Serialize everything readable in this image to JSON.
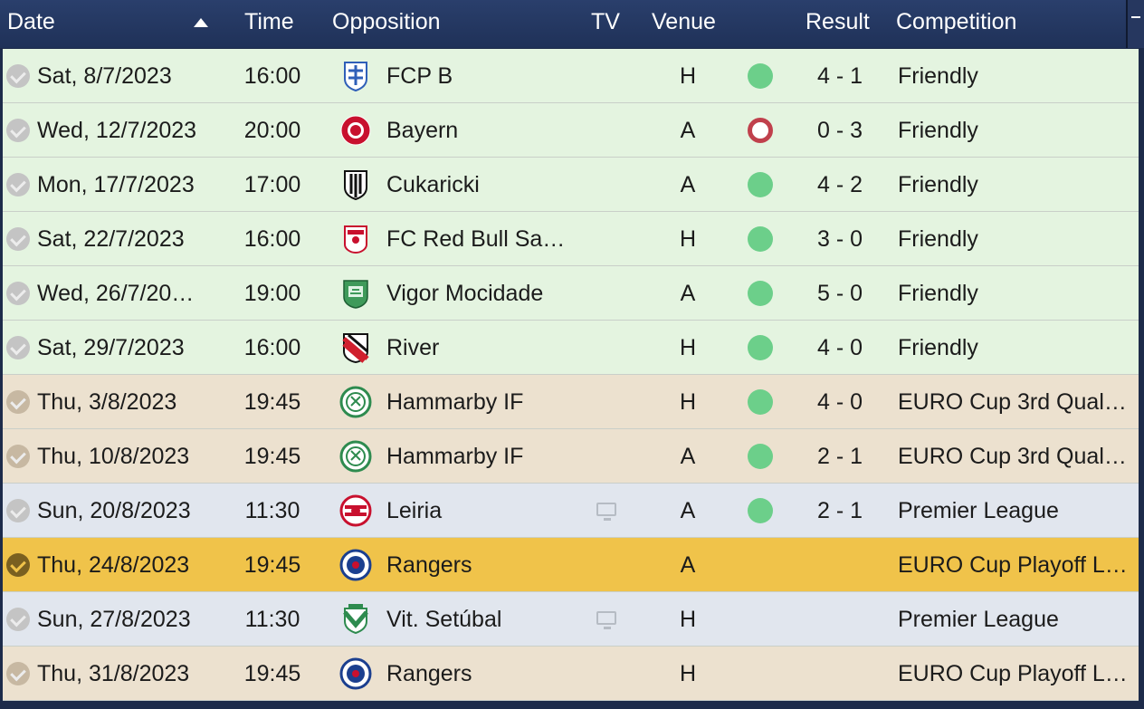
{
  "header": {
    "date": "Date",
    "time": "Time",
    "opposition": "Opposition",
    "tv": "TV",
    "venue": "Venue",
    "result": "Result",
    "competition": "Competition"
  },
  "colors": {
    "header": "#1f3158",
    "friendly_row": "#e4f4e0",
    "euro_row": "#ece1cf",
    "league_row": "#e1e6ee",
    "highlight_row": "#f0c34a",
    "win": "#6ccf8a",
    "loss": "#c0404c"
  },
  "fixtures": [
    {
      "date": "Sat, 8/7/2023",
      "time": "16:00",
      "opposition": "FCP B",
      "crest": "fcp-b-crest-icon",
      "tv": false,
      "venue": "H",
      "outcome": "win",
      "result": "4 - 1",
      "competition": "Friendly"
    },
    {
      "date": "Wed, 12/7/2023",
      "time": "20:00",
      "opposition": "Bayern",
      "crest": "bayern-crest-icon",
      "tv": false,
      "venue": "A",
      "outcome": "loss",
      "result": "0 - 3",
      "competition": "Friendly"
    },
    {
      "date": "Mon, 17/7/2023",
      "time": "17:00",
      "opposition": "Cukaricki",
      "crest": "cukaricki-crest-icon",
      "tv": false,
      "venue": "A",
      "outcome": "win",
      "result": "4 - 2",
      "competition": "Friendly"
    },
    {
      "date": "Sat, 22/7/2023",
      "time": "16:00",
      "opposition": "FC Red Bull Sa…",
      "crest": "red-bull-crest-icon",
      "tv": false,
      "venue": "H",
      "outcome": "win",
      "result": "3 - 0",
      "competition": "Friendly"
    },
    {
      "date": "Wed, 26/7/20…",
      "time": "19:00",
      "opposition": "Vigor Mocidade",
      "crest": "vigor-mocidade-crest-icon",
      "tv": false,
      "venue": "A",
      "outcome": "win",
      "result": "5 - 0",
      "competition": "Friendly"
    },
    {
      "date": "Sat, 29/7/2023",
      "time": "16:00",
      "opposition": "River",
      "crest": "river-crest-icon",
      "tv": false,
      "venue": "H",
      "outcome": "win",
      "result": "4 - 0",
      "competition": "Friendly"
    },
    {
      "date": "Thu, 3/8/2023",
      "time": "19:45",
      "opposition": "Hammarby IF",
      "crest": "hammarby-crest-icon",
      "tv": false,
      "venue": "H",
      "outcome": "win",
      "result": "4 - 0",
      "competition": "EURO Cup 3rd Qual…"
    },
    {
      "date": "Thu, 10/8/2023",
      "time": "19:45",
      "opposition": "Hammarby IF",
      "crest": "hammarby-crest-icon",
      "tv": false,
      "venue": "A",
      "outcome": "win",
      "result": "2 - 1",
      "competition": "EURO Cup 3rd Qual…"
    },
    {
      "date": "Sun, 20/8/2023",
      "time": "11:30",
      "opposition": "Leiria",
      "crest": "leiria-crest-icon",
      "tv": true,
      "venue": "A",
      "outcome": "win",
      "result": "2 - 1",
      "competition": "Premier League"
    },
    {
      "date": "Thu, 24/8/2023",
      "time": "19:45",
      "opposition": "Rangers",
      "crest": "rangers-crest-icon",
      "tv": false,
      "venue": "A",
      "outcome": "",
      "result": "",
      "competition": "EURO Cup Playoff L…"
    },
    {
      "date": "Sun, 27/8/2023",
      "time": "11:30",
      "opposition": "Vit. Setúbal",
      "crest": "setubal-crest-icon",
      "tv": true,
      "venue": "H",
      "outcome": "",
      "result": "",
      "competition": "Premier League"
    },
    {
      "date": "Thu, 31/8/2023",
      "time": "19:45",
      "opposition": "Rangers",
      "crest": "rangers-crest-icon",
      "tv": false,
      "venue": "H",
      "outcome": "",
      "result": "",
      "competition": "EURO Cup Playoff L…"
    }
  ]
}
